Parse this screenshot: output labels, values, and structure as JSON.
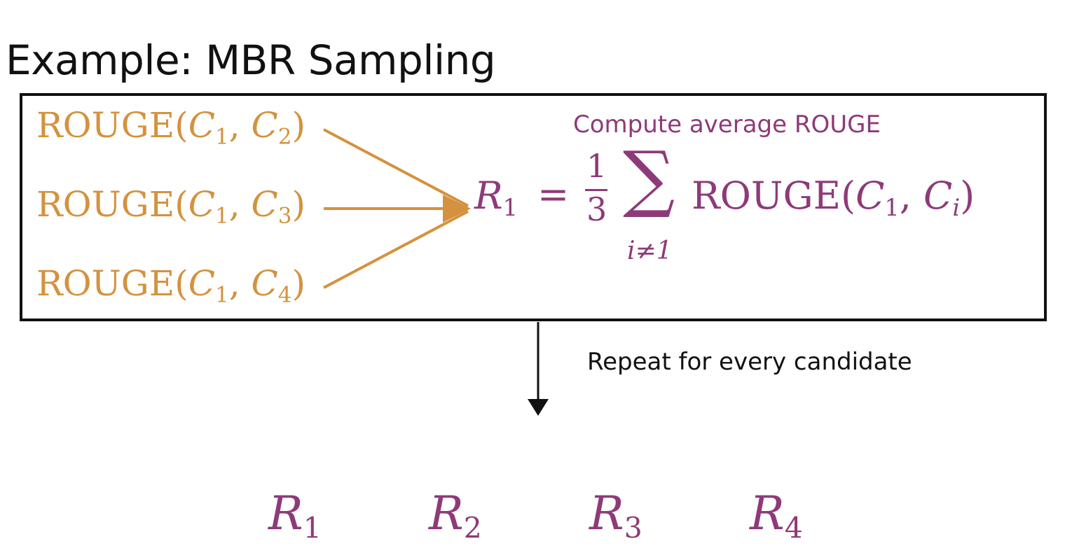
{
  "slide": {
    "title": "Example: MBR Sampling"
  },
  "box": {
    "rouge_terms": [
      {
        "fn": "ROUGE(",
        "a": "C",
        "a_sub": "1",
        "sep": ", ",
        "b": "C",
        "b_sub": "2",
        "close": ")"
      },
      {
        "fn": "ROUGE(",
        "a": "C",
        "a_sub": "1",
        "sep": ", ",
        "b": "C",
        "b_sub": "3",
        "close": ")"
      },
      {
        "fn": "ROUGE(",
        "a": "C",
        "a_sub": "1",
        "sep": ", ",
        "b": "C",
        "b_sub": "4",
        "close": ")"
      }
    ],
    "caption": "Compute average ROUGE",
    "formula": {
      "lhs": "R",
      "lhs_sub": "1",
      "equals": "=",
      "numerator": "1",
      "denominator": "3",
      "sigma": "∑",
      "sum_index": "i≠1",
      "fn": "ROUGE(",
      "a": "C",
      "a_sub": "1",
      "sep": ", ",
      "b": "C",
      "b_sub": "i",
      "close": ")"
    }
  },
  "repeat_caption": "Repeat for every candidate",
  "results": [
    {
      "letter": "R",
      "sub": "1"
    },
    {
      "letter": "R",
      "sub": "2"
    },
    {
      "letter": "R",
      "sub": "3"
    },
    {
      "letter": "R",
      "sub": "4"
    }
  ],
  "colors": {
    "orange": "#D4923E",
    "purple": "#8E3A7A",
    "black": "#111111"
  }
}
